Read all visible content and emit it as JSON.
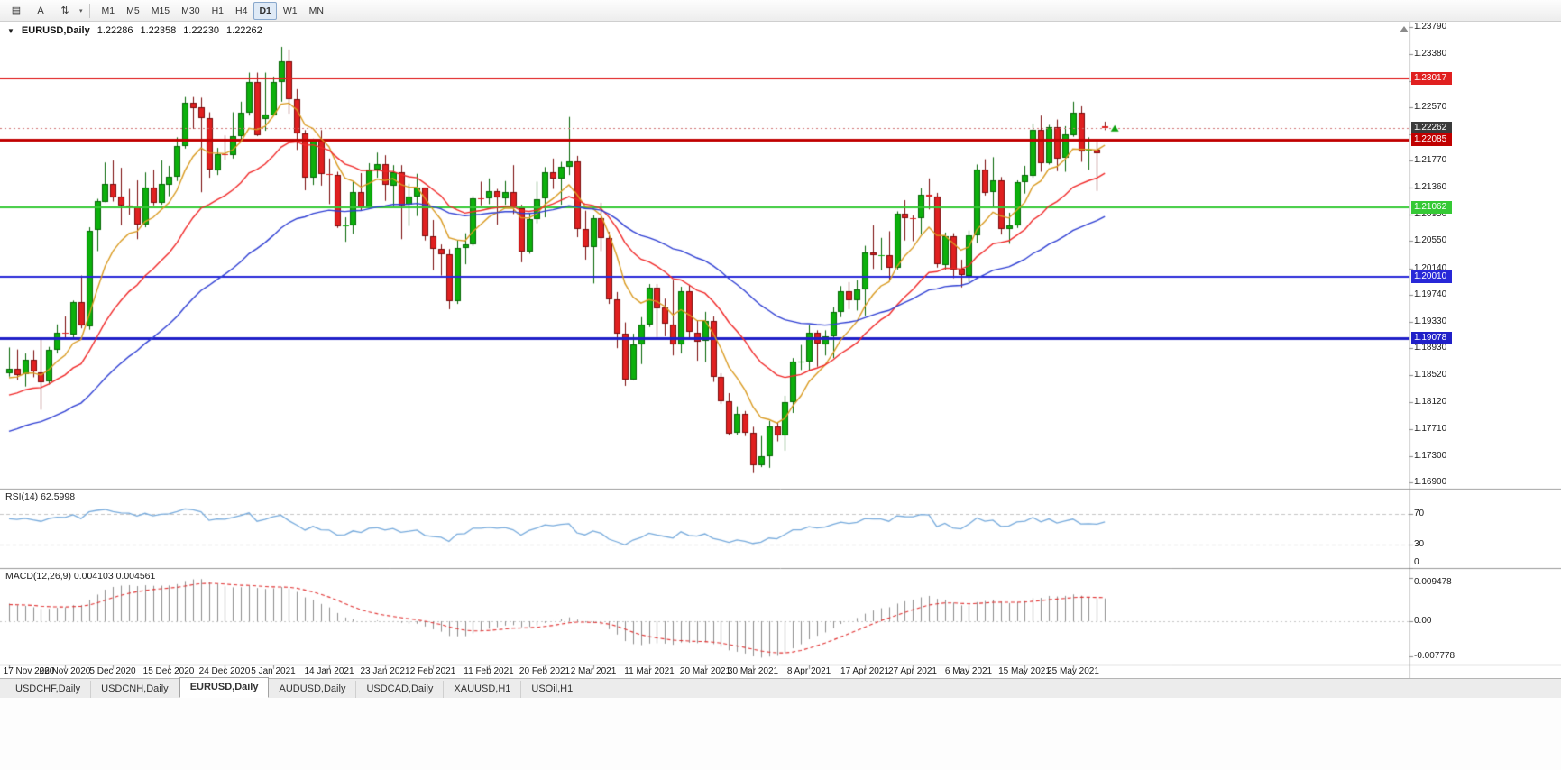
{
  "toolbar": {
    "left_buttons": [
      {
        "name": "tile-windows-icon",
        "glyph": "▤"
      },
      {
        "name": "text-label-tool-icon",
        "glyph": "A"
      },
      {
        "name": "arrange-icon",
        "glyph": "⇅"
      }
    ],
    "dropdown_caret": "▾",
    "timeframes": [
      "M1",
      "M5",
      "M15",
      "M30",
      "H1",
      "H4",
      "D1",
      "W1",
      "MN"
    ],
    "active_timeframe": "D1"
  },
  "chart": {
    "title": {
      "caret": "▼",
      "symbol": "EURUSD,Daily",
      "open": "1.22286",
      "high": "1.22358",
      "low": "1.22230",
      "close": "1.22262"
    },
    "price_axis": [
      "1.23790",
      "1.23380",
      "1.22970",
      "1.22570",
      "1.22160",
      "1.21770",
      "1.21360",
      "1.20950",
      "1.20550",
      "1.20140",
      "1.19740",
      "1.19330",
      "1.18930",
      "1.18520",
      "1.18120",
      "1.17710",
      "1.17300",
      "1.16900"
    ],
    "price_markers": [
      {
        "label": "1.23017",
        "value": 1.23017,
        "color": "#E02020",
        "width": 2,
        "current": false
      },
      {
        "label": "1.22262",
        "value": 1.22262,
        "color": "#3A3A3A",
        "width": 0,
        "current": true
      },
      {
        "label": "1.22085",
        "value": 1.22085,
        "color": "#C00000",
        "width": 3,
        "current": false
      },
      {
        "label": "1.21062",
        "value": 1.21062,
        "color": "#35C935",
        "width": 2,
        "current": false
      },
      {
        "label": "1.20010",
        "value": 1.2001,
        "color": "#2828D8",
        "width": 2,
        "current": false
      },
      {
        "label": "1.19078",
        "value": 1.19078,
        "color": "#2020C8",
        "width": 3,
        "current": false
      }
    ],
    "rsi": {
      "title": "RSI(14) 62.5998",
      "axis": [
        {
          "label": "70",
          "value": 70
        },
        {
          "label": "30",
          "value": 30
        },
        {
          "label": "0",
          "value": 0
        }
      ],
      "levels": [
        70,
        30
      ],
      "color": "#76AADC"
    },
    "macd": {
      "title": "MACD(12,26,9) 0.004103 0.004561",
      "axis": [
        {
          "label": "0.009478",
          "value": 0.009478
        },
        {
          "label": "0.00",
          "value": 0
        },
        {
          "label": "-0.007778",
          "value": -0.007778
        }
      ],
      "histogram_color": "#8C8C8C",
      "signal_color": "#E03030"
    },
    "date_axis": [
      {
        "text": "17 Nov 2020",
        "bar": 0
      },
      {
        "text": "26 Nov 2020",
        "bar": 7
      },
      {
        "text": "5 Dec 2020",
        "bar": 13
      },
      {
        "text": "15 Dec 2020",
        "bar": 20
      },
      {
        "text": "24 Dec 2020",
        "bar": 27
      },
      {
        "text": "5 Jan 2021",
        "bar": 33
      },
      {
        "text": "14 Jan 2021",
        "bar": 40
      },
      {
        "text": "23 Jan 2021",
        "bar": 47
      },
      {
        "text": "2 Feb 2021",
        "bar": 53
      },
      {
        "text": "11 Feb 2021",
        "bar": 60
      },
      {
        "text": "20 Feb 2021",
        "bar": 67
      },
      {
        "text": "2 Mar 2021",
        "bar": 73
      },
      {
        "text": "11 Mar 2021",
        "bar": 80
      },
      {
        "text": "20 Mar 2021",
        "bar": 87
      },
      {
        "text": "30 Mar 2021",
        "bar": 93
      },
      {
        "text": "8 Apr 2021",
        "bar": 100
      },
      {
        "text": "17 Apr 2021",
        "bar": 107
      },
      {
        "text": "27 Apr 2021",
        "bar": 113
      },
      {
        "text": "6 May 2021",
        "bar": 120
      },
      {
        "text": "15 May 2021",
        "bar": 127
      },
      {
        "text": "25 May 2021",
        "bar": 133
      }
    ]
  },
  "chart_data": {
    "type": "candlestick",
    "symbol": "EURUSD",
    "timeframe": "Daily",
    "ylim": [
      1.169,
      1.2379
    ],
    "current_price": 1.22262,
    "overlays": [
      {
        "name": "ma-fast",
        "period": 8,
        "color": "#D99A20"
      },
      {
        "name": "ma-mid",
        "period": 20,
        "color": "#F02828"
      },
      {
        "name": "ma-slow",
        "period": 45,
        "color": "#2F3FD3"
      }
    ],
    "indicators": [
      {
        "name": "RSI",
        "params": "14",
        "value": "62.5998",
        "levels": [
          70,
          30
        ]
      },
      {
        "name": "MACD",
        "params": "12,26,9",
        "values": [
          "0.004103",
          "0.004561"
        ],
        "range_labels": [
          "0.009478",
          "0.00",
          "-0.007778"
        ]
      }
    ],
    "ohlc": [
      [
        1.1855,
        1.1894,
        1.185,
        1.1862
      ],
      [
        1.1862,
        1.1891,
        1.1845,
        1.1853
      ],
      [
        1.1853,
        1.1885,
        1.1835,
        1.1875
      ],
      [
        1.1875,
        1.189,
        1.1849,
        1.1857
      ],
      [
        1.1857,
        1.1906,
        1.18,
        1.1842
      ],
      [
        1.1842,
        1.1895,
        1.1838,
        1.189
      ],
      [
        1.189,
        1.1929,
        1.1885,
        1.1916
      ],
      [
        1.1916,
        1.1941,
        1.1906,
        1.1914
      ],
      [
        1.1914,
        1.1965,
        1.1908,
        1.1963
      ],
      [
        1.1963,
        1.2003,
        1.1923,
        1.1927
      ],
      [
        1.1927,
        1.2076,
        1.1921,
        1.2071
      ],
      [
        1.2071,
        1.2119,
        1.204,
        1.2115
      ],
      [
        1.2115,
        1.2174,
        1.2114,
        1.2142
      ],
      [
        1.2142,
        1.2177,
        1.2115,
        1.2122
      ],
      [
        1.2122,
        1.2166,
        1.2079,
        1.2109
      ],
      [
        1.2109,
        1.2134,
        1.2095,
        1.2106
      ],
      [
        1.2106,
        1.2147,
        1.2058,
        1.208
      ],
      [
        1.208,
        1.2159,
        1.2076,
        1.2136
      ],
      [
        1.2136,
        1.2163,
        1.2109,
        1.2113
      ],
      [
        1.2113,
        1.2177,
        1.211,
        1.2141
      ],
      [
        1.2141,
        1.2169,
        1.2123,
        1.2153
      ],
      [
        1.2153,
        1.2212,
        1.2146,
        1.2199
      ],
      [
        1.2199,
        1.2273,
        1.2195,
        1.2265
      ],
      [
        1.2265,
        1.2273,
        1.2225,
        1.2257
      ],
      [
        1.2257,
        1.2272,
        1.2129,
        1.2241
      ],
      [
        1.2241,
        1.225,
        1.2151,
        1.2163
      ],
      [
        1.2163,
        1.2196,
        1.2155,
        1.2187
      ],
      [
        1.2187,
        1.2215,
        1.2178,
        1.2185
      ],
      [
        1.2185,
        1.225,
        1.218,
        1.2214
      ],
      [
        1.2214,
        1.2266,
        1.2207,
        1.2249
      ],
      [
        1.2249,
        1.231,
        1.2245,
        1.2296
      ],
      [
        1.2296,
        1.231,
        1.2214,
        1.2216
      ],
      [
        1.2239,
        1.231,
        1.2222,
        1.2246
      ],
      [
        1.2246,
        1.2304,
        1.2245,
        1.2296
      ],
      [
        1.2296,
        1.2349,
        1.2266,
        1.2327
      ],
      [
        1.2327,
        1.2345,
        1.2248,
        1.227
      ],
      [
        1.227,
        1.2285,
        1.2193,
        1.2218
      ],
      [
        1.2218,
        1.2223,
        1.2132,
        1.2151
      ],
      [
        1.2151,
        1.221,
        1.214,
        1.2207
      ],
      [
        1.2207,
        1.2223,
        1.2139,
        1.2157
      ],
      [
        1.2157,
        1.218,
        1.2111,
        1.2155
      ],
      [
        1.2155,
        1.216,
        1.2075,
        1.2077
      ],
      [
        1.2077,
        1.2091,
        1.2054,
        1.2079
      ],
      [
        1.2079,
        1.2145,
        1.2066,
        1.2129
      ],
      [
        1.2129,
        1.2158,
        1.2102,
        1.2105
      ],
      [
        1.2105,
        1.2173,
        1.2104,
        1.2163
      ],
      [
        1.2163,
        1.2189,
        1.2151,
        1.2171
      ],
      [
        1.2171,
        1.2185,
        1.2116,
        1.2139
      ],
      [
        1.2139,
        1.217,
        1.2108,
        1.216
      ],
      [
        1.216,
        1.217,
        1.2058,
        1.211
      ],
      [
        1.211,
        1.2142,
        1.2078,
        1.2122
      ],
      [
        1.2122,
        1.2157,
        1.2093,
        1.2136
      ],
      [
        1.2136,
        1.2136,
        1.2056,
        1.2062
      ],
      [
        1.2062,
        1.2087,
        1.2011,
        1.2043
      ],
      [
        1.2043,
        1.205,
        1.2003,
        1.2035
      ],
      [
        1.2035,
        1.2043,
        1.1952,
        1.1964
      ],
      [
        1.1964,
        1.2057,
        1.196,
        1.2045
      ],
      [
        1.2045,
        1.2067,
        1.202,
        1.205
      ],
      [
        1.205,
        1.2123,
        1.2048,
        1.212
      ],
      [
        1.212,
        1.2145,
        1.2109,
        1.2119
      ],
      [
        1.2119,
        1.215,
        1.2111,
        1.213
      ],
      [
        1.213,
        1.2134,
        1.208,
        1.212
      ],
      [
        1.212,
        1.2146,
        1.211,
        1.2129
      ],
      [
        1.2129,
        1.217,
        1.2096,
        1.2105
      ],
      [
        1.2105,
        1.211,
        1.2023,
        1.204
      ],
      [
        1.204,
        1.2097,
        1.2036,
        1.2089
      ],
      [
        1.2089,
        1.2145,
        1.2082,
        1.2119
      ],
      [
        1.2119,
        1.2167,
        1.2091,
        1.2159
      ],
      [
        1.2159,
        1.218,
        1.2134,
        1.215
      ],
      [
        1.215,
        1.2175,
        1.211,
        1.2168
      ],
      [
        1.2168,
        1.2243,
        1.2155,
        1.2176
      ],
      [
        1.2176,
        1.2184,
        1.2061,
        1.2074
      ],
      [
        1.2074,
        1.2101,
        1.2027,
        1.2047
      ],
      [
        1.2047,
        1.2094,
        1.1991,
        1.209
      ],
      [
        1.209,
        1.2113,
        1.204,
        1.206
      ],
      [
        1.206,
        1.2069,
        1.196,
        1.1967
      ],
      [
        1.1967,
        1.1978,
        1.1893,
        1.1915
      ],
      [
        1.1915,
        1.1932,
        1.1836,
        1.1846
      ],
      [
        1.1846,
        1.1915,
        1.1845,
        1.1899
      ],
      [
        1.1899,
        1.194,
        1.1869,
        1.1929
      ],
      [
        1.1929,
        1.199,
        1.1925,
        1.1985
      ],
      [
        1.1985,
        1.199,
        1.191,
        1.1954
      ],
      [
        1.1954,
        1.1968,
        1.1911,
        1.1929
      ],
      [
        1.1929,
        1.1996,
        1.1882,
        1.1899
      ],
      [
        1.1899,
        1.1986,
        1.1885,
        1.1979
      ],
      [
        1.1979,
        1.1989,
        1.1906,
        1.1917
      ],
      [
        1.1917,
        1.1935,
        1.1874,
        1.1904
      ],
      [
        1.1904,
        1.1948,
        1.1872,
        1.1934
      ],
      [
        1.1934,
        1.1941,
        1.1842,
        1.185
      ],
      [
        1.185,
        1.1855,
        1.1809,
        1.1813
      ],
      [
        1.1813,
        1.1825,
        1.1761,
        1.1764
      ],
      [
        1.1764,
        1.1805,
        1.1762,
        1.1793
      ],
      [
        1.1793,
        1.1798,
        1.176,
        1.1765
      ],
      [
        1.1765,
        1.1774,
        1.1704,
        1.1716
      ],
      [
        1.1716,
        1.176,
        1.1713,
        1.173
      ],
      [
        1.173,
        1.1783,
        1.1712,
        1.1775
      ],
      [
        1.1775,
        1.178,
        1.1752,
        1.1761
      ],
      [
        1.1761,
        1.1821,
        1.1738,
        1.1812
      ],
      [
        1.1812,
        1.1878,
        1.1795,
        1.1873
      ],
      [
        1.1873,
        1.1898,
        1.186,
        1.1873
      ],
      [
        1.1873,
        1.1928,
        1.186,
        1.1916
      ],
      [
        1.1916,
        1.192,
        1.1865,
        1.1899
      ],
      [
        1.1899,
        1.192,
        1.1882,
        1.1911
      ],
      [
        1.1911,
        1.1955,
        1.1878,
        1.1948
      ],
      [
        1.1948,
        1.1987,
        1.194,
        1.1979
      ],
      [
        1.1979,
        1.1993,
        1.1952,
        1.1966
      ],
      [
        1.1966,
        1.1996,
        1.195,
        1.1982
      ],
      [
        1.1982,
        1.2048,
        1.1942,
        1.2038
      ],
      [
        1.2038,
        1.2079,
        1.2013,
        1.2034
      ],
      [
        1.2034,
        1.206,
        1.2011,
        1.2034
      ],
      [
        1.2034,
        1.207,
        1.1994,
        1.2015
      ],
      [
        1.2015,
        1.21,
        1.2012,
        1.2097
      ],
      [
        1.2097,
        1.2117,
        1.2056,
        1.209
      ],
      [
        1.209,
        1.2094,
        1.2055,
        1.2089
      ],
      [
        1.2089,
        1.2135,
        1.2065,
        1.2125
      ],
      [
        1.2125,
        1.215,
        1.2103,
        1.2122
      ],
      [
        1.2122,
        1.2128,
        1.2015,
        1.202
      ],
      [
        1.202,
        1.2068,
        1.2012,
        1.2063
      ],
      [
        1.2063,
        1.2067,
        1.1999,
        1.2013
      ],
      [
        1.2013,
        1.2027,
        1.1985,
        1.2003
      ],
      [
        1.2003,
        1.2071,
        1.1993,
        1.2064
      ],
      [
        1.2064,
        1.2171,
        1.2052,
        1.2164
      ],
      [
        1.2164,
        1.2179,
        1.2124,
        1.2129
      ],
      [
        1.2129,
        1.2182,
        1.2105,
        1.2147
      ],
      [
        1.2147,
        1.2152,
        1.2065,
        1.2073
      ],
      [
        1.2073,
        1.2098,
        1.2051,
        1.2079
      ],
      [
        1.2079,
        1.2147,
        1.2075,
        1.2144
      ],
      [
        1.2144,
        1.2169,
        1.2127,
        1.2155
      ],
      [
        1.2155,
        1.2233,
        1.2151,
        1.2224
      ],
      [
        1.2224,
        1.2245,
        1.216,
        1.2174
      ],
      [
        1.2174,
        1.2231,
        1.2171,
        1.2228
      ],
      [
        1.2228,
        1.2239,
        1.2161,
        1.218
      ],
      [
        1.218,
        1.2229,
        1.216,
        1.2216
      ],
      [
        1.2216,
        1.2266,
        1.2213,
        1.225
      ],
      [
        1.225,
        1.2259,
        1.2175,
        1.2192
      ],
      [
        1.2192,
        1.2212,
        1.2163,
        1.2194
      ],
      [
        1.2194,
        1.2205,
        1.2131,
        1.2189
      ],
      [
        1.22286,
        1.22358,
        1.2223,
        1.22262
      ]
    ]
  },
  "tabs": [
    "USDCHF,Daily",
    "USDCNH,Daily",
    "EURUSD,Daily",
    "AUDUSD,Daily",
    "USDCAD,Daily",
    "XAUUSD,H1",
    "USOil,H1"
  ],
  "active_tab": "EURUSD,Daily",
  "colors": {
    "candle_up": "#0CB00C",
    "candle_up_border": "#056605",
    "candle_down": "#E02020",
    "candle_down_border": "#7A0A0A",
    "ma_fast": "#D99A20",
    "ma_mid": "#F02828",
    "ma_slow": "#2F3FD3",
    "rsi_line": "#76AADC",
    "macd_histogram": "#8C8C8C",
    "macd_signal": "#E03030",
    "current_price_box": "#3A3A3A",
    "axis_text": "#1A1A1A",
    "buy_arrow": "#0CA00C"
  }
}
